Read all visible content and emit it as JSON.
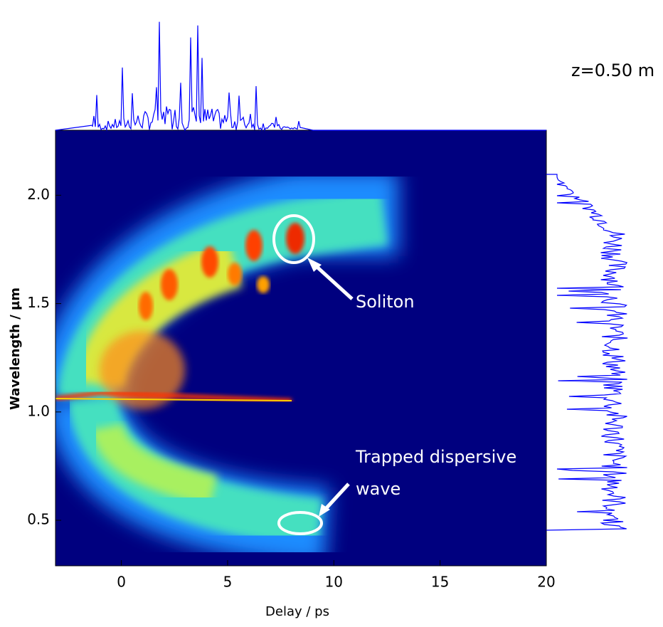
{
  "chart_data": {
    "type": "spectrogram",
    "xlabel": "Delay / ps",
    "ylabel": "Wavelength / µm",
    "xlim": [
      -3.1,
      20
    ],
    "ylim": [
      0.29,
      2.3
    ],
    "xticks": [
      0,
      5,
      10,
      15,
      20
    ],
    "yticks": [
      {
        "value": 0.5,
        "label": "0.5"
      },
      {
        "value": 1.0,
        "label": "1.0"
      },
      {
        "value": 1.5,
        "label": "1.5"
      },
      {
        "value": 2.0,
        "label": "2.0"
      }
    ],
    "annotations": {
      "distance": "z=0.50 m",
      "soliton": "Soliton",
      "dispersive_wave": [
        "Trapped dispersive",
        "wave"
      ]
    }
  }
}
